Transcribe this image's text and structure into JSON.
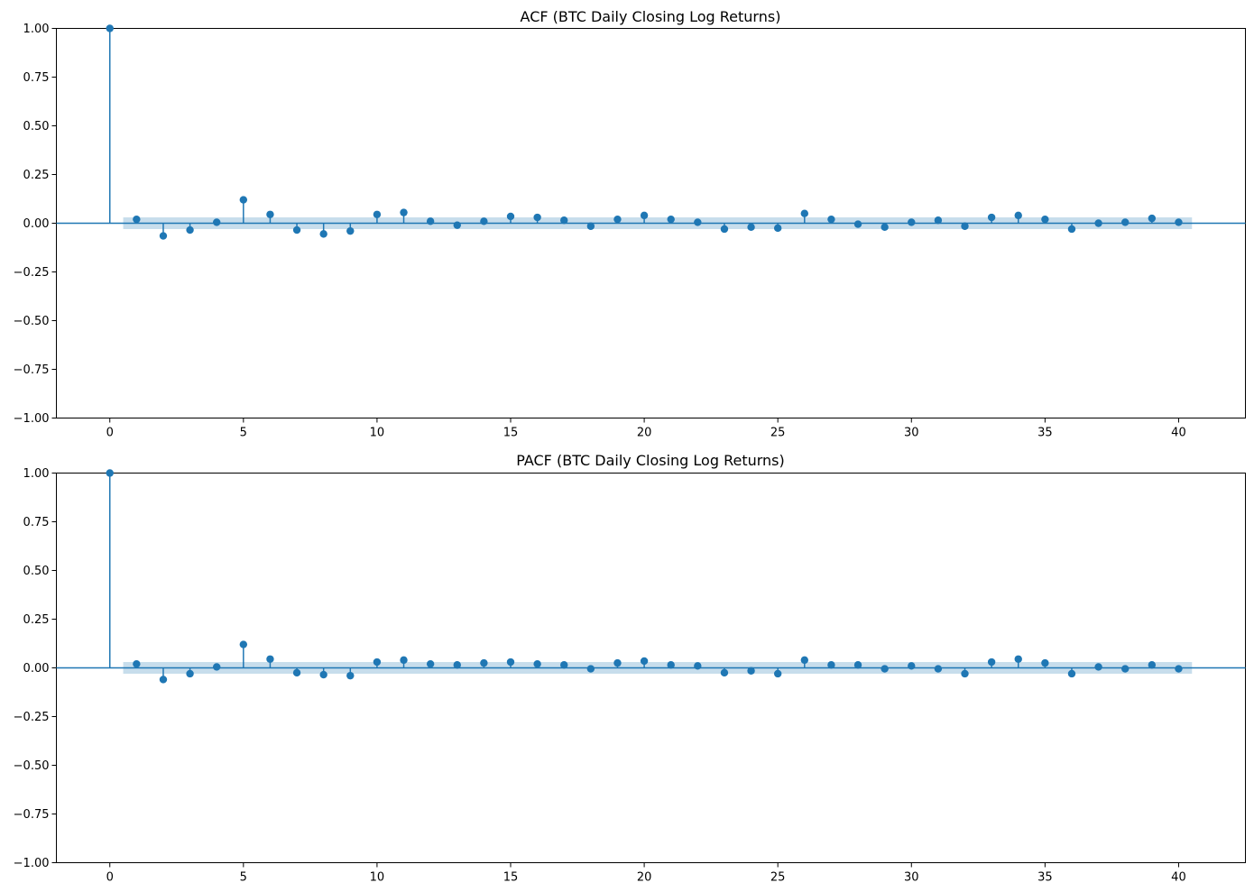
{
  "chart_data": [
    {
      "type": "stem",
      "title": "ACF (BTC Daily Closing Log Returns)",
      "xlabel": "",
      "ylabel": "",
      "xlim": [
        -2,
        42.5
      ],
      "ylim": [
        -1.0,
        1.0
      ],
      "xticks": [
        "0",
        "5",
        "10",
        "15",
        "20",
        "25",
        "30",
        "35",
        "40"
      ],
      "yticks": [
        "1.00",
        "0.75",
        "0.50",
        "0.25",
        "0.00",
        "−0.25",
        "−0.50",
        "−0.75",
        "−1.00"
      ],
      "grid": false,
      "color": "#1f77b4",
      "confidence_band": 0.03,
      "lags": [
        0,
        1,
        2,
        3,
        4,
        5,
        6,
        7,
        8,
        9,
        10,
        11,
        12,
        13,
        14,
        15,
        16,
        17,
        18,
        19,
        20,
        21,
        22,
        23,
        24,
        25,
        26,
        27,
        28,
        29,
        30,
        31,
        32,
        33,
        34,
        35,
        36,
        37,
        38,
        39,
        40
      ],
      "values": [
        1.0,
        0.02,
        -0.065,
        -0.035,
        0.005,
        0.12,
        0.045,
        -0.035,
        -0.055,
        -0.04,
        0.045,
        0.055,
        0.01,
        -0.01,
        0.01,
        0.035,
        0.03,
        0.015,
        -0.015,
        0.02,
        0.04,
        0.02,
        0.005,
        -0.03,
        -0.02,
        -0.025,
        0.05,
        0.02,
        -0.005,
        -0.02,
        0.005,
        0.015,
        -0.015,
        0.03,
        0.04,
        0.02,
        -0.03,
        0.0,
        0.005,
        0.025,
        0.005
      ]
    },
    {
      "type": "stem",
      "title": "PACF (BTC Daily Closing Log Returns)",
      "xlabel": "",
      "ylabel": "",
      "xlim": [
        -2,
        42.5
      ],
      "ylim": [
        -1.0,
        1.0
      ],
      "xticks": [
        "0",
        "5",
        "10",
        "15",
        "20",
        "25",
        "30",
        "35",
        "40"
      ],
      "yticks": [
        "1.00",
        "0.75",
        "0.50",
        "0.25",
        "0.00",
        "−0.25",
        "−0.50",
        "−0.75",
        "−1.00"
      ],
      "grid": false,
      "color": "#1f77b4",
      "confidence_band": 0.03,
      "lags": [
        0,
        1,
        2,
        3,
        4,
        5,
        6,
        7,
        8,
        9,
        10,
        11,
        12,
        13,
        14,
        15,
        16,
        17,
        18,
        19,
        20,
        21,
        22,
        23,
        24,
        25,
        26,
        27,
        28,
        29,
        30,
        31,
        32,
        33,
        34,
        35,
        36,
        37,
        38,
        39,
        40
      ],
      "values": [
        1.0,
        0.02,
        -0.06,
        -0.03,
        0.005,
        0.12,
        0.045,
        -0.025,
        -0.035,
        -0.04,
        0.03,
        0.04,
        0.02,
        0.015,
        0.025,
        0.03,
        0.02,
        0.015,
        -0.005,
        0.025,
        0.035,
        0.015,
        0.01,
        -0.025,
        -0.015,
        -0.03,
        0.04,
        0.015,
        0.015,
        -0.005,
        0.01,
        -0.005,
        -0.03,
        0.03,
        0.045,
        0.025,
        -0.03,
        0.005,
        -0.005,
        0.015,
        -0.005
      ]
    }
  ]
}
